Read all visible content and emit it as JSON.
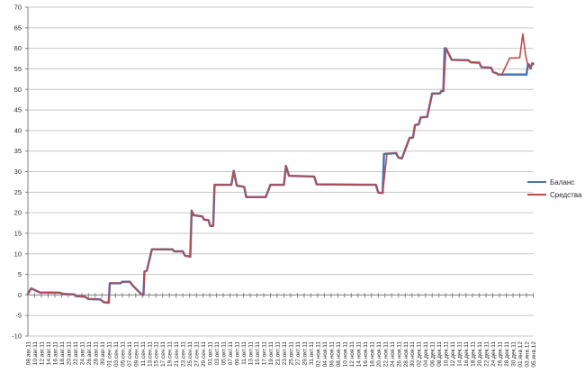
{
  "chart_data": {
    "type": "line",
    "title": "",
    "grid_color": "#c6c6c6",
    "axis_color": "#808080",
    "background": "#ffffff",
    "legend_position": "right",
    "y_axis": {
      "min": -10,
      "max": 70,
      "step": 5,
      "tick_labels": [
        "70",
        "65",
        "60",
        "55",
        "50",
        "45",
        "40",
        "35",
        "30",
        "25",
        "20",
        "15",
        "10",
        "5",
        "0",
        "-5",
        "-10"
      ]
    },
    "x_axis": {
      "total_days": 150,
      "tick_every_days": 2,
      "labels": [
        "08.авг.11",
        "10.авг.11",
        "12.авг.11",
        "14.авг.11",
        "16.авг.11",
        "18.авг.11",
        "20.авг.11",
        "22.авг.11",
        "24.авг.11",
        "26.авг.11",
        "28.авг.11",
        "30.авг.11",
        "01.сен.11",
        "03.сен.11",
        "05.сен.11",
        "07.сен.11",
        "09.сен.11",
        "11.сен.11",
        "13.сен.11",
        "15.сен.11",
        "17.сен.11",
        "19.сен.11",
        "21.сен.11",
        "23.сен.11",
        "25.сен.11",
        "27.сен.11",
        "29.сен.11",
        "01.окт.11",
        "03.окт.11",
        "05.окт.11",
        "07.окт.11",
        "09.окт.11",
        "11.окт.11",
        "13.окт.11",
        "15.окт.11",
        "17.окт.11",
        "19.окт.11",
        "21.окт.11",
        "23.окт.11",
        "25.окт.11",
        "27.окт.11",
        "29.окт.11",
        "31.окт.11",
        "02.ноя.11",
        "04.ноя.11",
        "06.ноя.11",
        "08.ноя.11",
        "10.ноя.11",
        "12.ноя.11",
        "14.ноя.11",
        "16.ноя.11",
        "18.ноя.11",
        "20.ноя.11",
        "22.ноя.11",
        "24.ноя.11",
        "26.ноя.11",
        "28.ноя.11",
        "30.ноя.11",
        "02.дек.11",
        "04.дек.11",
        "06.дек.11",
        "08.дек.11",
        "10.дек.11",
        "12.дек.11",
        "14.дек.11",
        "16.дек.11",
        "18.дек.11",
        "20.дек.11",
        "22.дек.11",
        "24.дек.11",
        "26.дек.11",
        "28.дек.11",
        "30.дек.11",
        "01.янв.12",
        "03.янв.12",
        "05.янв.12"
      ]
    },
    "series": [
      {
        "name": "Баланс",
        "color": "#4376b9",
        "width": 2.5,
        "points": [
          [
            0,
            0.3
          ],
          [
            1,
            1.6
          ],
          [
            2.5,
            1.0
          ],
          [
            3.5,
            0.6
          ],
          [
            9.5,
            0.55
          ],
          [
            10.5,
            0.25
          ],
          [
            13.5,
            0.15
          ],
          [
            14.5,
            -0.3
          ],
          [
            17,
            -0.45
          ],
          [
            18,
            -1.0
          ],
          [
            21.5,
            -1.1
          ],
          [
            22.5,
            -1.75
          ],
          [
            24,
            -1.9
          ],
          [
            24.3,
            2.85
          ],
          [
            27.5,
            2.85
          ],
          [
            28,
            3.2
          ],
          [
            30.3,
            3.2
          ],
          [
            31,
            2.4
          ],
          [
            33.5,
            0.3
          ],
          [
            34.3,
            0
          ],
          [
            34.6,
            5.7
          ],
          [
            35.3,
            5.9
          ],
          [
            36.8,
            11.1
          ],
          [
            42.9,
            11.1
          ],
          [
            43.4,
            10.6
          ],
          [
            46,
            10.6
          ],
          [
            46.6,
            9.6
          ],
          [
            48.2,
            9.3
          ],
          [
            48.6,
            20.5
          ],
          [
            49.2,
            19.4
          ],
          [
            51.8,
            19.1
          ],
          [
            52.3,
            18.3
          ],
          [
            53.6,
            18.2
          ],
          [
            54.1,
            16.8
          ],
          [
            55,
            16.8
          ],
          [
            55.4,
            26.8
          ],
          [
            60.4,
            26.8
          ],
          [
            61.1,
            30.2
          ],
          [
            62,
            26.6
          ],
          [
            64.2,
            26.3
          ],
          [
            64.8,
            23.8
          ],
          [
            70.6,
            23.8
          ],
          [
            72,
            26.8
          ],
          [
            76,
            26.8
          ],
          [
            76.6,
            31.4
          ],
          [
            77.5,
            29
          ],
          [
            85,
            28.8
          ],
          [
            85.7,
            26.9
          ],
          [
            103.3,
            26.8
          ],
          [
            104,
            24.9
          ],
          [
            105.3,
            24.8
          ],
          [
            105.7,
            34.3
          ],
          [
            109.3,
            34.5
          ],
          [
            110,
            33.4
          ],
          [
            111,
            33.2
          ],
          [
            113.3,
            38.2
          ],
          [
            114.3,
            38.3
          ],
          [
            114.9,
            41.3
          ],
          [
            116,
            41.5
          ],
          [
            116.6,
            43.2
          ],
          [
            118.5,
            43.3
          ],
          [
            120,
            49
          ],
          [
            122.3,
            49
          ],
          [
            122.7,
            49.6
          ],
          [
            123.3,
            49.6
          ],
          [
            123.7,
            60
          ],
          [
            124.1,
            60
          ],
          [
            125.8,
            57.2
          ],
          [
            130.8,
            57.1
          ],
          [
            131.4,
            56.6
          ],
          [
            134,
            56.5
          ],
          [
            134.6,
            55.4
          ],
          [
            137.5,
            55.3
          ],
          [
            138.1,
            54.2
          ],
          [
            139,
            54
          ],
          [
            139.7,
            53.6
          ],
          [
            148,
            53.6
          ],
          [
            148.4,
            55.9
          ],
          [
            148.7,
            56.1
          ],
          [
            149.2,
            55.1
          ],
          [
            149.7,
            56.4
          ],
          [
            150,
            56.2
          ]
        ]
      },
      {
        "name": "Средства",
        "color": "#be4b48",
        "width": 1.6,
        "points": [
          [
            0,
            0.3
          ],
          [
            1,
            1.6
          ],
          [
            2.5,
            1.0
          ],
          [
            3.5,
            0.6
          ],
          [
            9.5,
            0.55
          ],
          [
            10.5,
            0.25
          ],
          [
            13.5,
            0.15
          ],
          [
            14.5,
            -0.3
          ],
          [
            17,
            -0.45
          ],
          [
            18,
            -1.0
          ],
          [
            21.5,
            -1.1
          ],
          [
            22.5,
            -1.75
          ],
          [
            24,
            -1.9
          ],
          [
            24.3,
            2.85
          ],
          [
            27.5,
            2.85
          ],
          [
            28,
            3.2
          ],
          [
            30.3,
            3.2
          ],
          [
            31,
            2.4
          ],
          [
            33.5,
            0.3
          ],
          [
            34.3,
            0
          ],
          [
            34.6,
            5.7
          ],
          [
            35.3,
            5.9
          ],
          [
            36.8,
            11.1
          ],
          [
            42.9,
            11.1
          ],
          [
            43.4,
            10.6
          ],
          [
            46,
            10.6
          ],
          [
            46.6,
            9.6
          ],
          [
            48.2,
            9.3
          ],
          [
            48.6,
            20.5
          ],
          [
            49.2,
            19.4
          ],
          [
            51.8,
            19.1
          ],
          [
            52.3,
            18.3
          ],
          [
            53.6,
            18.2
          ],
          [
            54.1,
            16.8
          ],
          [
            55,
            16.8
          ],
          [
            55.4,
            26.8
          ],
          [
            60.4,
            26.8
          ],
          [
            61.1,
            30.2
          ],
          [
            62,
            26.6
          ],
          [
            64.2,
            26.3
          ],
          [
            64.8,
            23.8
          ],
          [
            70.6,
            23.8
          ],
          [
            72,
            26.8
          ],
          [
            76,
            26.8
          ],
          [
            76.6,
            31.4
          ],
          [
            77.5,
            29
          ],
          [
            85,
            28.8
          ],
          [
            85.7,
            26.9
          ],
          [
            103.3,
            26.8
          ],
          [
            104,
            24.9
          ],
          [
            105.3,
            24.8
          ],
          [
            106.6,
            34.4
          ],
          [
            109.3,
            34.5
          ],
          [
            110,
            33.4
          ],
          [
            111,
            33.2
          ],
          [
            113.3,
            38.2
          ],
          [
            114.3,
            38.3
          ],
          [
            114.9,
            41.3
          ],
          [
            116,
            41.5
          ],
          [
            116.6,
            43.2
          ],
          [
            118.5,
            43.3
          ],
          [
            120,
            49
          ],
          [
            122.3,
            49
          ],
          [
            122.7,
            49.6
          ],
          [
            123.4,
            49.6
          ],
          [
            124.1,
            60
          ],
          [
            125.8,
            57.2
          ],
          [
            130.8,
            57.1
          ],
          [
            131.4,
            56.6
          ],
          [
            134,
            56.5
          ],
          [
            134.6,
            55.4
          ],
          [
            137.5,
            55.3
          ],
          [
            138.1,
            54.2
          ],
          [
            139,
            54
          ],
          [
            139.7,
            53.6
          ],
          [
            140.6,
            53.5
          ],
          [
            143,
            57.6
          ],
          [
            146,
            57.7
          ],
          [
            146.9,
            63.5
          ],
          [
            147.7,
            58.5
          ],
          [
            148.4,
            55.9
          ],
          [
            148.7,
            56.1
          ],
          [
            149.2,
            55.1
          ],
          [
            149.7,
            56.4
          ],
          [
            150,
            56.2
          ]
        ]
      }
    ]
  },
  "legend": {
    "balance_label": "Баланс",
    "funds_label": "Средства"
  }
}
